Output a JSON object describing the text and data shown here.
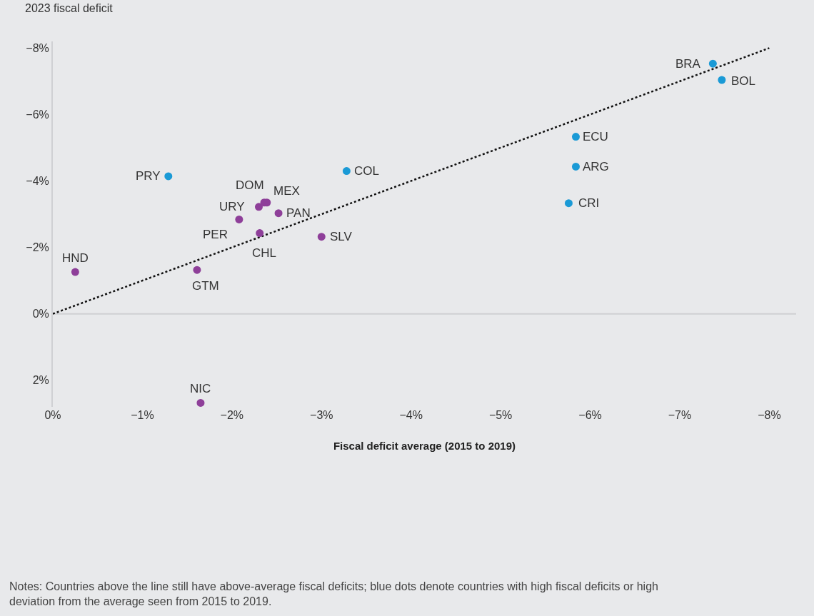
{
  "chart_data": {
    "type": "scatter",
    "ylabel": "2023 fiscal deficit",
    "xlabel": "Fiscal deficit average (2015 to 2019)",
    "xlim": [
      0,
      -8.3
    ],
    "ylim": [
      2.8,
      -8.2
    ],
    "xticks": [
      {
        "value": 0,
        "label": "0%"
      },
      {
        "value": -1,
        "label": "−1%"
      },
      {
        "value": -2,
        "label": "−2%"
      },
      {
        "value": -3,
        "label": "−3%"
      },
      {
        "value": -4,
        "label": "−4%"
      },
      {
        "value": -5,
        "label": "−5%"
      },
      {
        "value": -6,
        "label": "−6%"
      },
      {
        "value": -7,
        "label": "−7%"
      },
      {
        "value": -8,
        "label": "−8%"
      }
    ],
    "yticks": [
      {
        "value": 2,
        "label": "2%"
      },
      {
        "value": 0,
        "label": "0%"
      },
      {
        "value": -2,
        "label": "−2%"
      },
      {
        "value": -4,
        "label": "−4%"
      },
      {
        "value": -6,
        "label": "−6%"
      },
      {
        "value": -8,
        "label": "−8%"
      }
    ],
    "grid": false,
    "ref_lines": [
      {
        "axis": "y",
        "value": 0,
        "color": "#cfd0d3",
        "line_style": "solid"
      }
    ],
    "marker": "circle",
    "series": [
      {
        "type": "line",
        "color": "#111111",
        "line_style": "dotted",
        "marker": "none",
        "x": [
          0,
          -8
        ],
        "values": [
          0,
          -8
        ]
      },
      {
        "color": "#1a9ad6",
        "x": [
          -1.29,
          -3.28,
          -7.37,
          -7.47,
          -5.84,
          -5.84,
          -5.76
        ],
        "values": [
          -4.14,
          -4.3,
          -7.53,
          -7.04,
          -5.33,
          -4.43,
          -3.33
        ]
      },
      {
        "color": "#8e3f99",
        "x": [
          -0.25,
          -1.61,
          -1.65,
          -2.08,
          -2.3,
          -2.36,
          -2.39,
          -2.52,
          -2.31,
          -3.0
        ],
        "values": [
          -1.26,
          -1.32,
          2.68,
          -2.84,
          -3.22,
          -3.35,
          -3.35,
          -3.03,
          -2.43,
          -2.32
        ]
      }
    ],
    "annotations": [
      {
        "text": "PRY",
        "x": -1.29,
        "y": -4.14
      },
      {
        "text": "COL",
        "x": -3.28,
        "y": -4.3
      },
      {
        "text": "BRA",
        "x": -7.37,
        "y": -7.53
      },
      {
        "text": "BOL",
        "x": -7.47,
        "y": -7.04
      },
      {
        "text": "ECU",
        "x": -5.84,
        "y": -5.33
      },
      {
        "text": "ARG",
        "x": -5.84,
        "y": -4.43
      },
      {
        "text": "CRI",
        "x": -5.76,
        "y": -3.33
      },
      {
        "text": "HND",
        "x": -0.25,
        "y": -1.26
      },
      {
        "text": "GTM",
        "x": -1.61,
        "y": -1.32
      },
      {
        "text": "NIC",
        "x": -1.65,
        "y": 2.68
      },
      {
        "text": "URY",
        "x": -2.08,
        "y": -2.84
      },
      {
        "text": "DOM",
        "x": -2.3,
        "y": -3.22
      },
      {
        "text": "MEX",
        "x": -2.39,
        "y": -3.35
      },
      {
        "text": "PAN",
        "x": -2.52,
        "y": -3.03
      },
      {
        "text": "PER",
        "x": -2.31,
        "y": -2.43
      },
      {
        "text": "CHL",
        "x": -2.31,
        "y": -2.43
      },
      {
        "text": "SLV",
        "x": -3.0,
        "y": -2.32
      },
      "Notes: Countries above the line still have above-average fiscal deficits; blue dots denote countries with high fiscal deficits or high deviation from the average seen from 2015 to 2019."
    ]
  }
}
